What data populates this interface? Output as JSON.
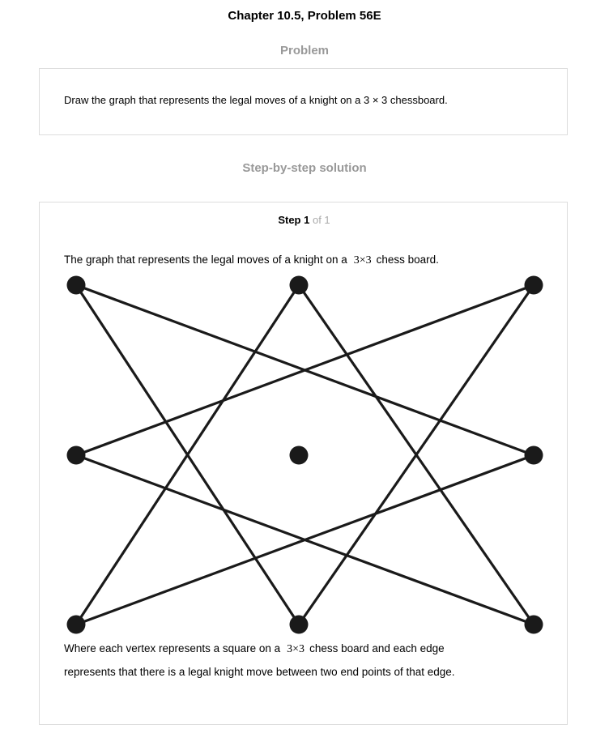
{
  "header": {
    "title": "Chapter 10.5, Problem 56E"
  },
  "problem": {
    "heading": "Problem",
    "text": "Draw the graph that represents the legal moves of a knight on a 3 × 3 chessboard."
  },
  "solution": {
    "heading": "Step-by-step solution",
    "step_label": "Step 1",
    "step_of": "of 1",
    "intro_before": "The graph that represents the legal moves of a knight on a",
    "math": "3×3",
    "intro_after": "chess board.",
    "explain_line1_before": "Where each vertex represents a square on a",
    "explain_line1_after": "chess board and each edge",
    "explain_line2": "represents that there is a legal knight move between two end points of that edge."
  },
  "graph": {
    "vertex_color": "#1a1a1a",
    "edge_color": "#1a1a1a"
  }
}
